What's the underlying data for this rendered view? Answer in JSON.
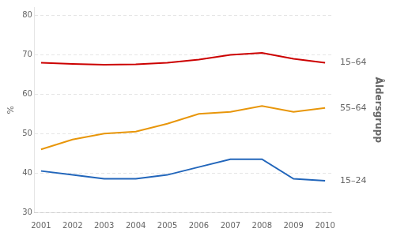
{
  "chart_data": {
    "type": "line",
    "x": [
      2001,
      2002,
      2003,
      2004,
      2005,
      2006,
      2007,
      2008,
      2009,
      2010
    ],
    "series": [
      {
        "name": "15–64",
        "color": "#cc0000",
        "values": [
          68.0,
          67.7,
          67.5,
          67.6,
          68.0,
          68.8,
          70.0,
          70.5,
          69.0,
          68.0
        ]
      },
      {
        "name": "55–64",
        "color": "#e8960a",
        "values": [
          46.0,
          48.5,
          50.0,
          50.5,
          52.5,
          55.0,
          55.5,
          57.0,
          55.5,
          56.5
        ]
      },
      {
        "name": "15–24",
        "color": "#2266bb",
        "values": [
          40.5,
          39.5,
          38.5,
          38.5,
          39.5,
          41.5,
          43.5,
          43.5,
          38.5,
          38.0
        ]
      }
    ],
    "ylabel": "%",
    "y2label": "Åldersgrupp",
    "xlim": [
      2000.8,
      2010.2
    ],
    "xticks": [
      2001,
      2002,
      2003,
      2004,
      2005,
      2006,
      2007,
      2008,
      2009,
      2010
    ],
    "ylim": [
      30,
      82
    ],
    "yticks": [
      30,
      40,
      50,
      60,
      70,
      80
    ],
    "y2lim": [
      30,
      82
    ],
    "y2ticks": [
      {
        "value": 68.0,
        "label": "15–64"
      },
      {
        "value": 56.5,
        "label": "55–64"
      },
      {
        "value": 38.0,
        "label": "15–24"
      }
    ],
    "grid": "y"
  }
}
